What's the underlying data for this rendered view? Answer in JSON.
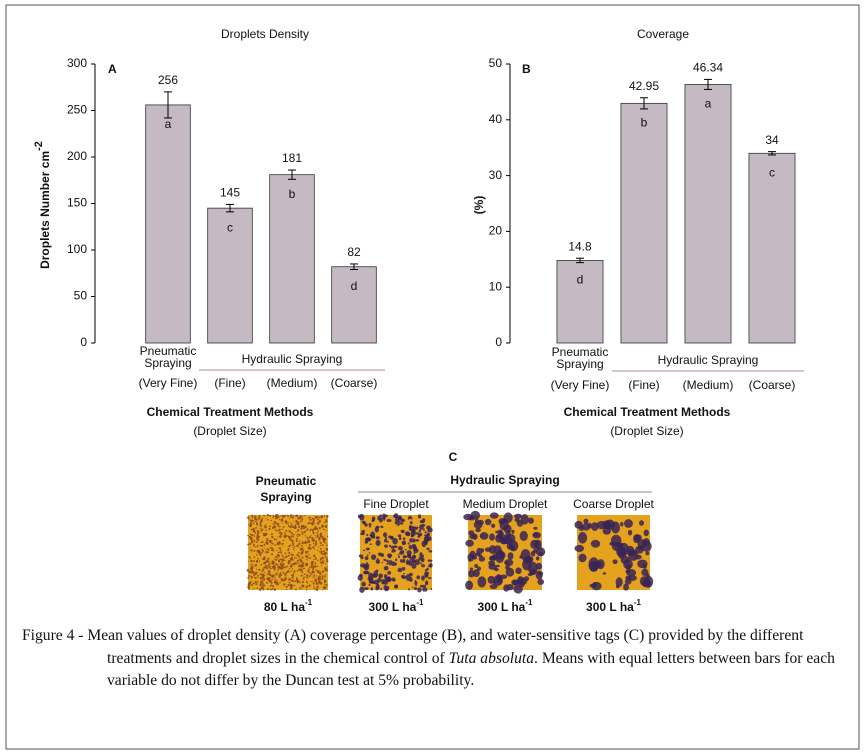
{
  "chart_data": [
    {
      "type": "bar",
      "title": "Droplets Density",
      "panel": "A",
      "y_label": "Droplets Number cm",
      "y_label_sup": "-2",
      "group_labels": [
        "Pneumatic Spraying",
        "Hydraulic Spraying"
      ],
      "categories": [
        "(Very Fine)",
        "(Fine)",
        "(Medium)",
        "(Coarse)"
      ],
      "values": [
        256,
        145,
        181,
        82
      ],
      "errors": [
        14,
        4,
        5,
        3
      ],
      "letters": [
        "a",
        "c",
        "b",
        "d"
      ],
      "x_label": "Chemical Treatment Methods",
      "x_sublabel": "(Droplet Size)",
      "ylim": [
        0,
        300
      ],
      "yticks": [
        0,
        50,
        100,
        150,
        200,
        250,
        300
      ],
      "color": "#c5b9c4"
    },
    {
      "type": "bar",
      "title": "Coverage",
      "panel": "B",
      "y_label": "(%)",
      "group_labels": [
        "Pneumatic Spraying",
        "Hydraulic Spraying"
      ],
      "categories": [
        "(Very Fine)",
        "(Fine)",
        "(Medium)",
        "(Coarse)"
      ],
      "values": [
        14.8,
        42.95,
        46.34,
        34
      ],
      "errors": [
        0.4,
        1,
        0.9,
        0.3
      ],
      "letters": [
        "d",
        "b",
        "a",
        "c"
      ],
      "x_label": "Chemical Treatment Methods",
      "x_sublabel": "(Droplet Size)",
      "ylim": [
        0,
        50
      ],
      "yticks": [
        0,
        10,
        20,
        30,
        40,
        50
      ],
      "color": "#c5b9c4"
    }
  ],
  "panel_c": {
    "label": "C",
    "pneumatic": "Pneumatic Spraying",
    "hydraulic": "Hydraulic Spraying",
    "cards": [
      {
        "title": null,
        "rate": "80 L ha",
        "rate_sup": "-1"
      },
      {
        "title": "Fine Droplet",
        "rate": "300 L ha",
        "rate_sup": "-1"
      },
      {
        "title": "Medium Droplet",
        "rate": "300 L ha",
        "rate_sup": "-1"
      },
      {
        "title": "Coarse Droplet",
        "rate": "300 L ha",
        "rate_sup": "-1"
      }
    ]
  },
  "caption": {
    "before": "Figure 4 - Mean values of droplet density (A) coverage percentage (B), and water-sensitive tags (C) provided by the different treatments and droplet sizes in the chemical control of ",
    "italic": "Tuta absoluta",
    "after": ". Means with equal letters between bars for each variable do not differ by the Duncan test at 5% probability."
  }
}
